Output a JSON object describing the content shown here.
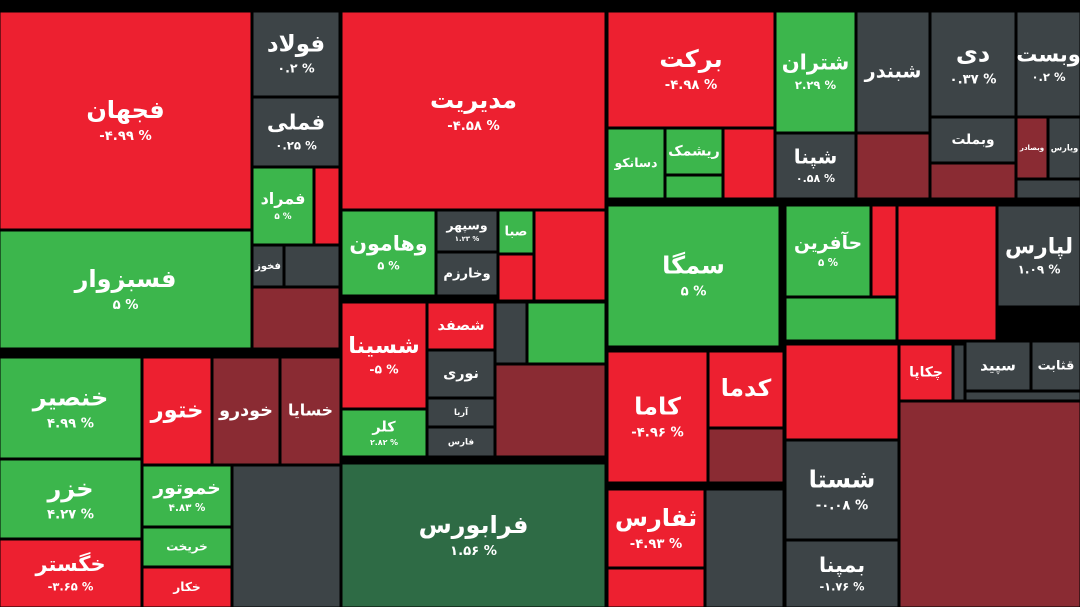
{
  "chart_data": {
    "type": "treemap",
    "tiles": [
      {
        "name": "فجهان",
        "value": -4.99,
        "value_label": "-۴.۹۹ %",
        "color": "#ed2030"
      },
      {
        "name": "فسبزوار",
        "value": 5,
        "value_label": "۵ %",
        "color": "#3cb64c"
      },
      {
        "name": "فولاد",
        "value": 0.2,
        "value_label": "۰.۲ %",
        "color": "#3d4447"
      },
      {
        "name": "فملی",
        "value": 0.25,
        "value_label": "۰.۲۵ %",
        "color": "#3d4447"
      },
      {
        "name": "فمراد",
        "value": 5,
        "value_label": "۵ %",
        "color": "#3cb64c"
      },
      {
        "name": "فخوز",
        "color": "#3d4447"
      },
      {
        "name": "مدیریت",
        "value": -4.58,
        "value_label": "-۴.۵۸ %",
        "color": "#ed2030"
      },
      {
        "name": "وهامون",
        "value": 5,
        "value_label": "۵ %",
        "color": "#3cb64c"
      },
      {
        "name": "وسپهر",
        "value": 1.23,
        "value_label": "۱.۲۳ %",
        "color": "#3d4447"
      },
      {
        "name": "وخارزم",
        "color": "#3d4447"
      },
      {
        "name": "صبا",
        "color": "#3cb64c"
      },
      {
        "name": "شسینا",
        "value": -5,
        "value_label": "-۵ %",
        "color": "#ed2030"
      },
      {
        "name": "کلر",
        "value": 2.82,
        "value_label": "۲.۸۲ %",
        "color": "#3cb64c"
      },
      {
        "name": "شصفد",
        "color": "#ed2030"
      },
      {
        "name": "نوری",
        "color": "#3d4447"
      },
      {
        "name": "آریا",
        "color": "#3d4447"
      },
      {
        "name": "فارس",
        "color": "#3d4447"
      },
      {
        "name": "فرابورس",
        "value": 1.56,
        "value_label": "۱.۵۶ %",
        "color": "#2e6b45"
      },
      {
        "name": "برکت",
        "value": -4.98,
        "value_label": "-۴.۹۸ %",
        "color": "#ed2030"
      },
      {
        "name": "دسانکو",
        "color": "#3cb64c"
      },
      {
        "name": "ریشمک",
        "color": "#3cb64c"
      },
      {
        "name": "سمگا",
        "value": 5,
        "value_label": "۵ %",
        "color": "#3cb64c"
      },
      {
        "name": "کاما",
        "value": -4.96,
        "value_label": "-۴.۹۶ %",
        "color": "#ed2030"
      },
      {
        "name": "کدما",
        "color": "#ed2030"
      },
      {
        "name": "ثفارس",
        "value": -4.93,
        "value_label": "-۴.۹۳ %",
        "color": "#ed2030"
      },
      {
        "name": "شتران",
        "value": 2.29,
        "value_label": "۲.۲۹ %",
        "color": "#3cb64c"
      },
      {
        "name": "شبندر",
        "color": "#3d4447"
      },
      {
        "name": "شپنا",
        "value": 0.58,
        "value_label": "۰.۵۸ %",
        "color": "#3d4447"
      },
      {
        "name": "حآفرین",
        "value": 5,
        "value_label": "۵ %",
        "color": "#3cb64c"
      },
      {
        "name": "شستا",
        "value": -0.08,
        "value_label": "-۰.۰۸ %",
        "color": "#3d4447"
      },
      {
        "name": "بمپنا",
        "value": -1.76,
        "value_label": "-۱.۷۶ %",
        "color": "#3d4447"
      },
      {
        "name": "دی",
        "value": 0.37,
        "value_label": "۰.۳۷ %",
        "color": "#3d4447"
      },
      {
        "name": "وبست",
        "value": 0.2,
        "value_label": "۰.۲ %",
        "color": "#3d4447"
      },
      {
        "name": "وبملت",
        "color": "#3d4447"
      },
      {
        "name": "لپارس",
        "value": 1.09,
        "value_label": "۱.۰۹ %",
        "color": "#3d4447"
      },
      {
        "name": "خنصیر",
        "value": 4.99,
        "value_label": "۴.۹۹ %",
        "color": "#3cb64c"
      },
      {
        "name": "خزر",
        "value": 4.27,
        "value_label": "۴.۲۷ %",
        "color": "#3cb64c"
      },
      {
        "name": "خگستر",
        "value": -3.65,
        "value_label": "-۳.۶۵ %",
        "color": "#ed2030"
      },
      {
        "name": "ختور",
        "color": "#ed2030"
      },
      {
        "name": "خودرو",
        "color": "#8a2b33"
      },
      {
        "name": "خسایا",
        "color": "#8a2b33"
      },
      {
        "name": "خموتور",
        "value": 4.83,
        "value_label": "۴.۸۳ %",
        "color": "#3cb64c"
      },
      {
        "name": "خریخت",
        "color": "#3cb64c"
      },
      {
        "name": "خکار",
        "color": "#ed2030"
      },
      {
        "name": "چکاپا",
        "color": "#ed2030"
      },
      {
        "name": "سپید",
        "color": "#3d4447"
      },
      {
        "name": "قثابت",
        "color": "#3d4447"
      },
      {
        "name": "وبصادر",
        "color": "#8a2b33"
      },
      {
        "name": "ویارس",
        "color": "#3d4447"
      }
    ]
  }
}
